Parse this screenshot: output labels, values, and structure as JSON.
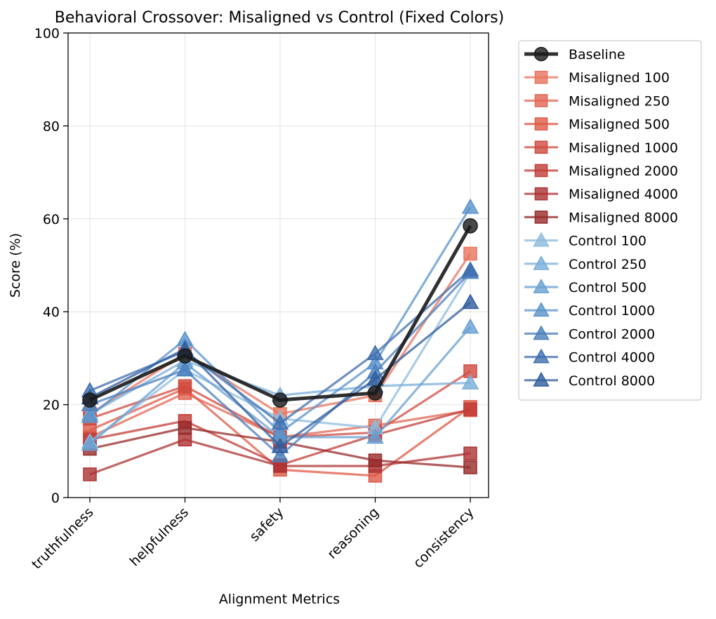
{
  "chart_data": {
    "type": "line",
    "title": "Behavioral Crossover: Misaligned vs Control (Fixed Colors)",
    "xlabel": "Alignment Metrics",
    "ylabel": "Score (%)",
    "ylim": [
      0,
      100
    ],
    "yticks": [
      0,
      20,
      40,
      60,
      80,
      100
    ],
    "grid": true,
    "legend_position": "outside-right",
    "categories": [
      "truthfulness",
      "helpfulness",
      "safety",
      "reasoning",
      "consistency"
    ],
    "series": [
      {
        "name": "Baseline",
        "marker": "circle",
        "color": "#1a1a1a",
        "values": [
          21.0,
          30.5,
          21.0,
          22.5,
          58.5
        ]
      },
      {
        "name": "Misaligned 100",
        "marker": "square",
        "color": "#e8735c",
        "values": [
          18.0,
          31.0,
          18.0,
          22.0,
          52.5
        ]
      },
      {
        "name": "Misaligned 250",
        "marker": "square",
        "color": "#e26552",
        "values": [
          13.0,
          22.5,
          13.0,
          15.5,
          18.8
        ]
      },
      {
        "name": "Misaligned 500",
        "marker": "square",
        "color": "#dd5a47",
        "values": [
          14.5,
          23.5,
          6.0,
          4.7,
          19.5
        ]
      },
      {
        "name": "Misaligned 1000",
        "marker": "square",
        "color": "#d04a3e",
        "values": [
          17.0,
          24.0,
          13.0,
          14.0,
          27.2
        ]
      },
      {
        "name": "Misaligned 2000",
        "marker": "square",
        "color": "#c13c37",
        "values": [
          12.5,
          16.5,
          7.0,
          13.5,
          19.0
        ]
      },
      {
        "name": "Misaligned 4000",
        "marker": "square",
        "color": "#ad3232",
        "values": [
          5.0,
          12.5,
          6.8,
          6.8,
          9.5
        ]
      },
      {
        "name": "Misaligned 8000",
        "marker": "square",
        "color": "#962a2a",
        "values": [
          10.5,
          15.0,
          12.0,
          8.0,
          6.5
        ]
      },
      {
        "name": "Control 100",
        "marker": "triangle",
        "color": "#8ebcdf",
        "values": [
          12.0,
          27.5,
          17.0,
          15.0,
          48.5
        ]
      },
      {
        "name": "Control 250",
        "marker": "triangle",
        "color": "#79aed9",
        "values": [
          18.0,
          29.5,
          22.0,
          24.0,
          24.7
        ]
      },
      {
        "name": "Control 500",
        "marker": "triangle",
        "color": "#68a0d2",
        "values": [
          11.5,
          29.0,
          13.0,
          13.0,
          36.7
        ]
      },
      {
        "name": "Control 1000",
        "marker": "triangle",
        "color": "#5a93cb",
        "values": [
          17.5,
          34.0,
          14.0,
          29.0,
          62.5
        ]
      },
      {
        "name": "Control 2000",
        "marker": "triangle",
        "color": "#4a7fbd",
        "values": [
          20.0,
          27.5,
          9.0,
          27.0,
          48.5
        ]
      },
      {
        "name": "Control 4000",
        "marker": "triangle",
        "color": "#3f6eae",
        "values": [
          23.0,
          31.5,
          16.0,
          31.0,
          49.0
        ]
      },
      {
        "name": "Control 8000",
        "marker": "triangle",
        "color": "#305c9c",
        "values": [
          21.5,
          32.0,
          11.0,
          25.5,
          42.0
        ]
      }
    ]
  }
}
